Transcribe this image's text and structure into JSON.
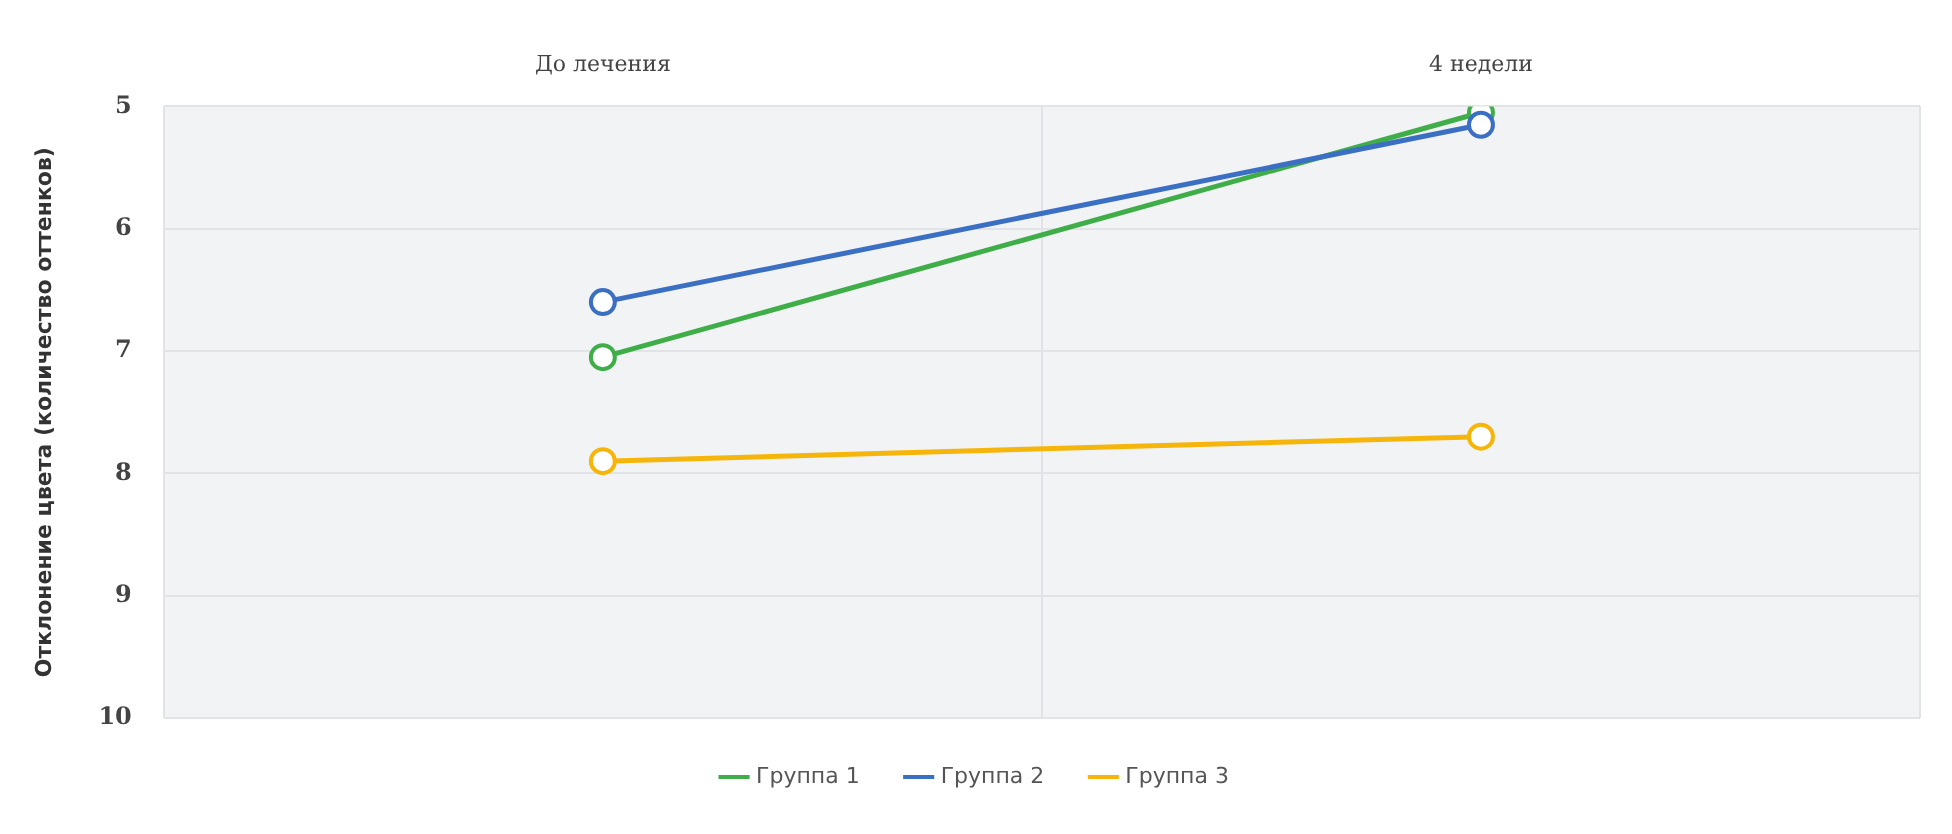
{
  "chart_data": {
    "type": "line",
    "ylabel": "Отклонение цвета (количество оттенков)",
    "categories": [
      "До лечения",
      "4 недели"
    ],
    "series": [
      {
        "name": "Группа 1",
        "color": "#3fae49",
        "values": [
          7.05,
          5.05
        ]
      },
      {
        "name": "Группа 2",
        "color": "#3b6fc4",
        "values": [
          6.6,
          5.15
        ]
      },
      {
        "name": "Группа 3",
        "color": "#f5b50a",
        "values": [
          7.9,
          7.7
        ]
      }
    ],
    "ylim": [
      10,
      5
    ],
    "yticks": [
      5,
      6,
      7,
      8,
      9,
      10
    ],
    "grid": true,
    "legend": "bottom",
    "marker": "circle",
    "line_style": "solid"
  }
}
